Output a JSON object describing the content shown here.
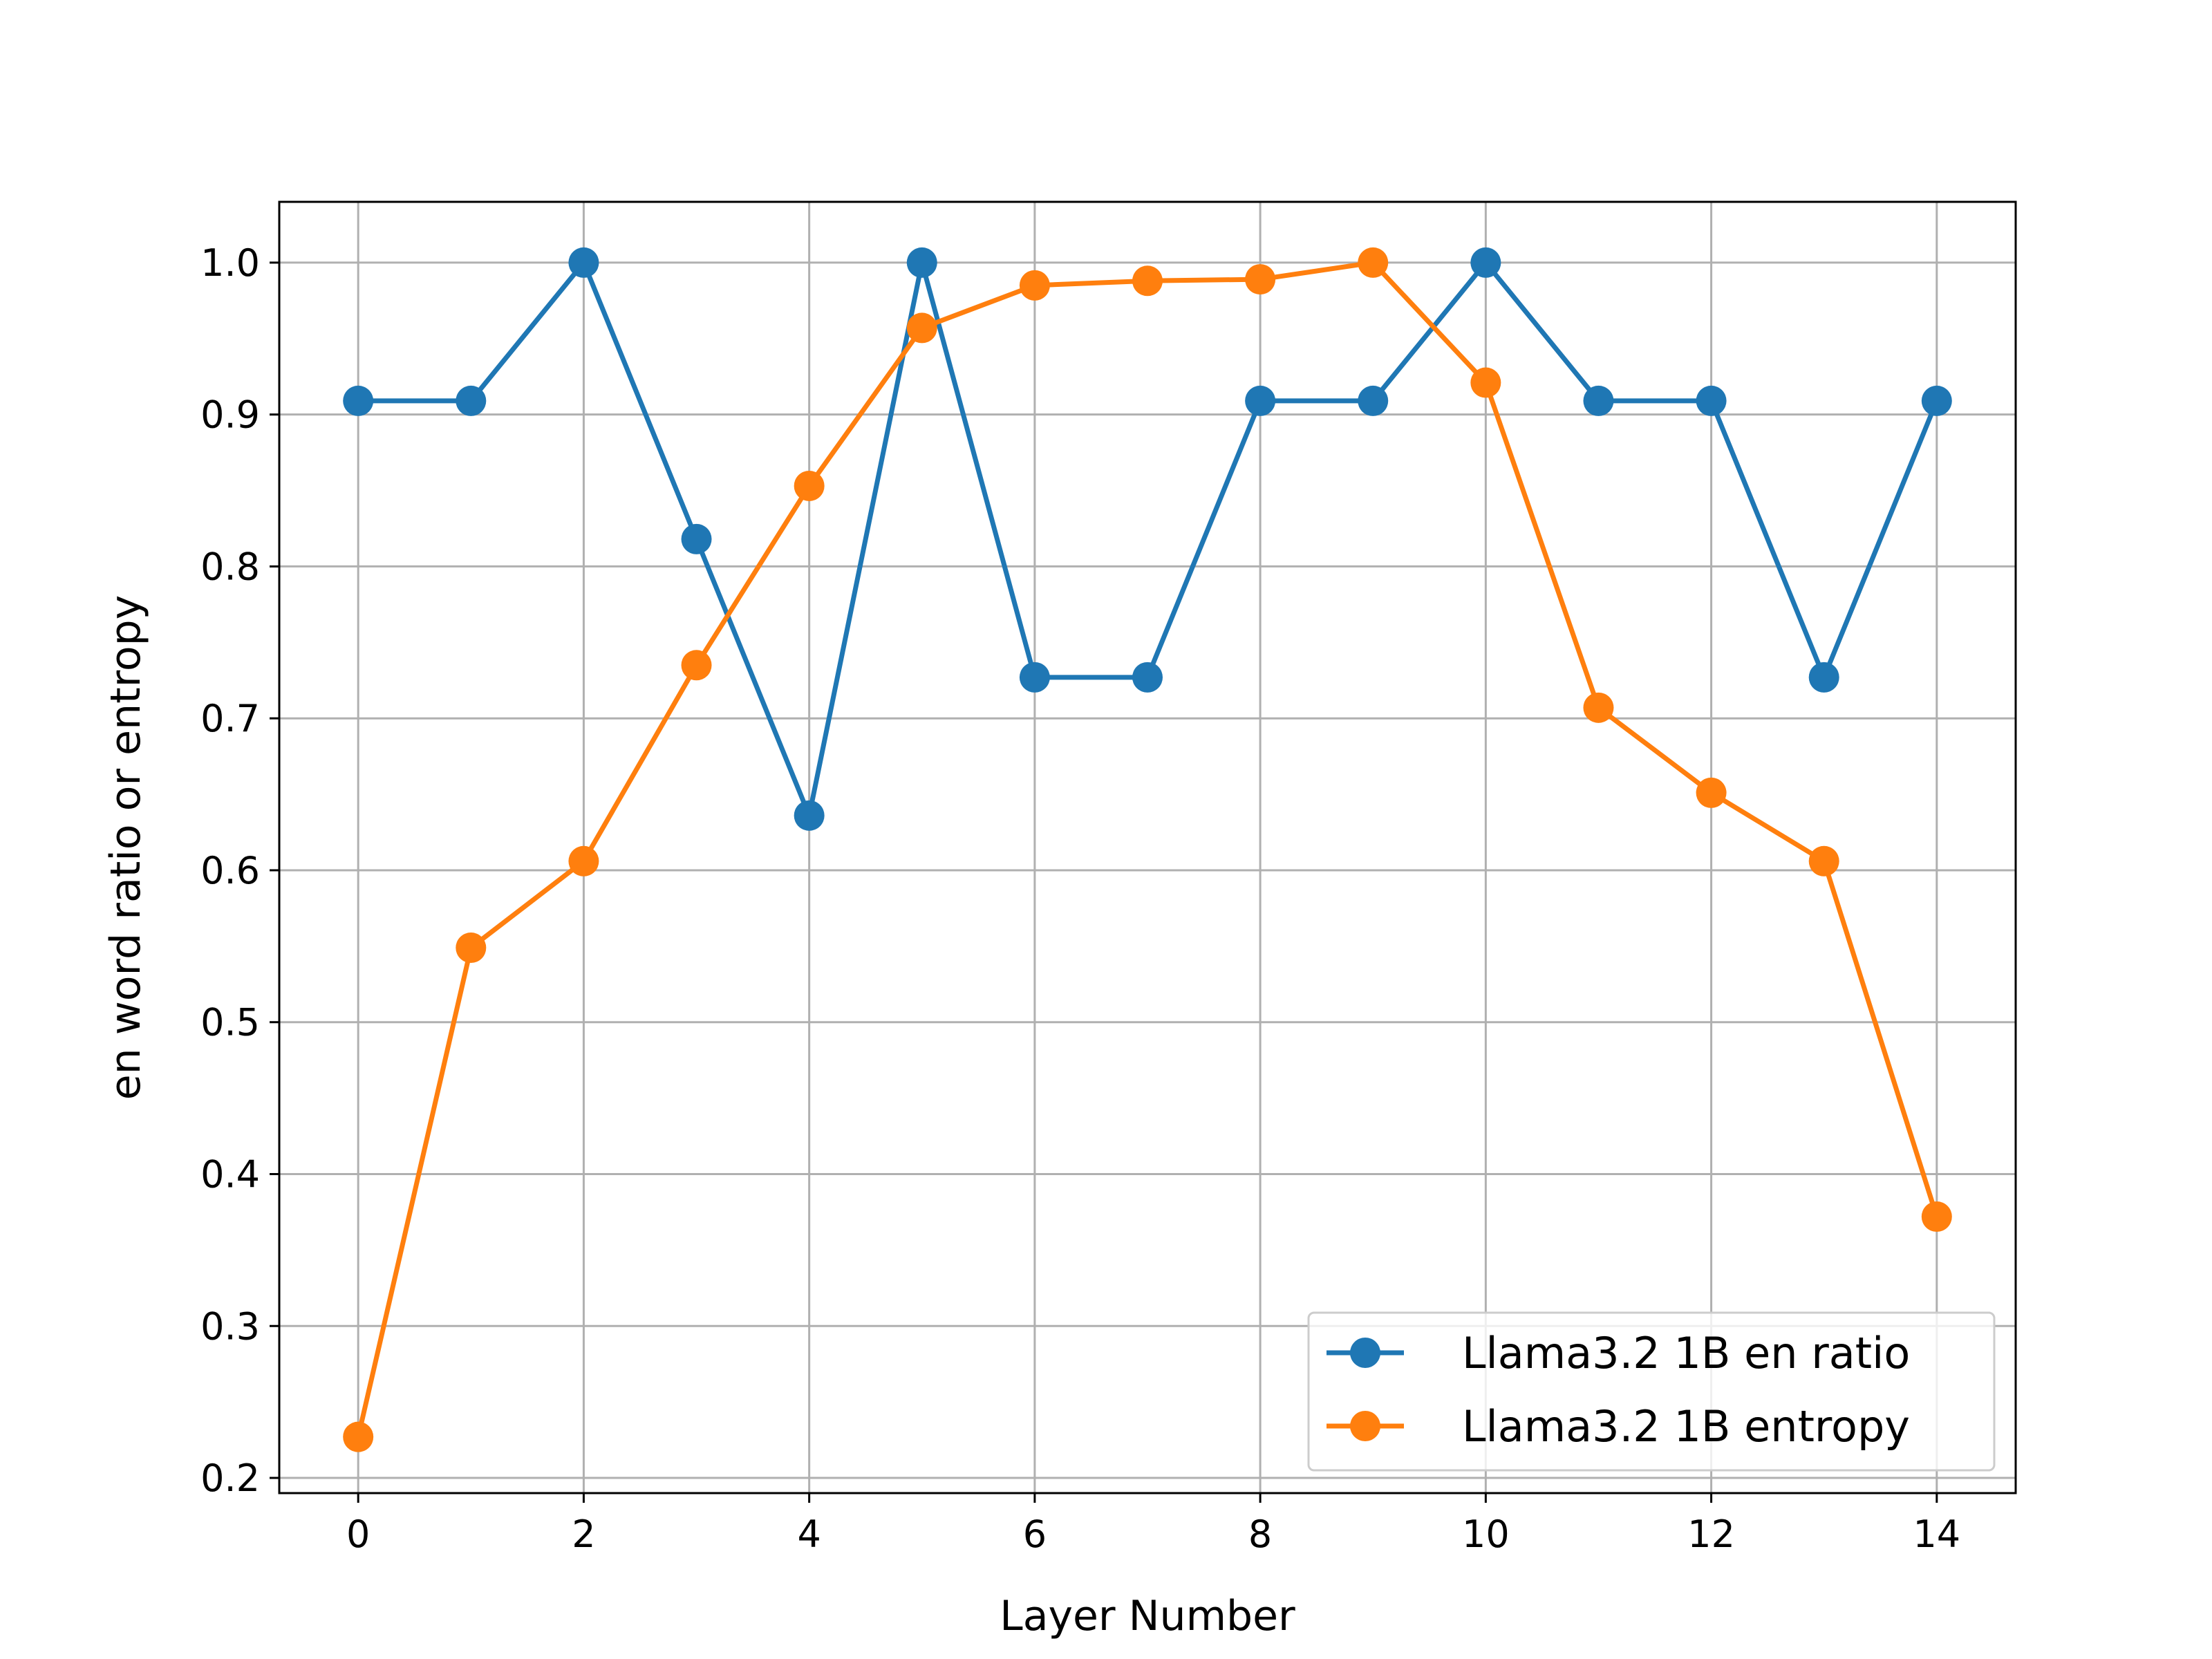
{
  "chart_data": {
    "type": "line",
    "title": "",
    "xlabel": "Layer Number",
    "ylabel": "en word ratio or entropy",
    "x": [
      0,
      1,
      2,
      3,
      4,
      5,
      6,
      7,
      8,
      9,
      10,
      11,
      12,
      13,
      14
    ],
    "xlim": [
      -0.7,
      14.7
    ],
    "ylim": [
      0.19,
      1.04
    ],
    "xticks": [
      0,
      2,
      4,
      6,
      8,
      10,
      12,
      14
    ],
    "yticks": [
      0.2,
      0.3,
      0.4,
      0.5,
      0.6,
      0.7,
      0.8,
      0.9,
      1.0
    ],
    "xtick_labels": [
      "0",
      "2",
      "4",
      "6",
      "8",
      "10",
      "12",
      "14"
    ],
    "ytick_labels": [
      "0.2",
      "0.3",
      "0.4",
      "0.5",
      "0.6",
      "0.7",
      "0.8",
      "0.9",
      "1.0"
    ],
    "grid": true,
    "legend_position": "lower-right",
    "series": [
      {
        "name": "Llama3.2 1B en ratio",
        "color": "#1f77b4",
        "marker": "circle",
        "values": [
          0.909,
          0.909,
          1.0,
          0.818,
          0.636,
          1.0,
          0.727,
          0.727,
          0.909,
          0.909,
          1.0,
          0.909,
          0.909,
          0.727,
          0.909
        ]
      },
      {
        "name": "Llama3.2 1B entropy",
        "color": "#ff7f0e",
        "marker": "circle",
        "values": [
          0.227,
          0.549,
          0.606,
          0.735,
          0.853,
          0.957,
          0.985,
          0.988,
          0.989,
          1.0,
          0.921,
          0.707,
          0.651,
          0.606,
          0.372
        ]
      }
    ]
  }
}
